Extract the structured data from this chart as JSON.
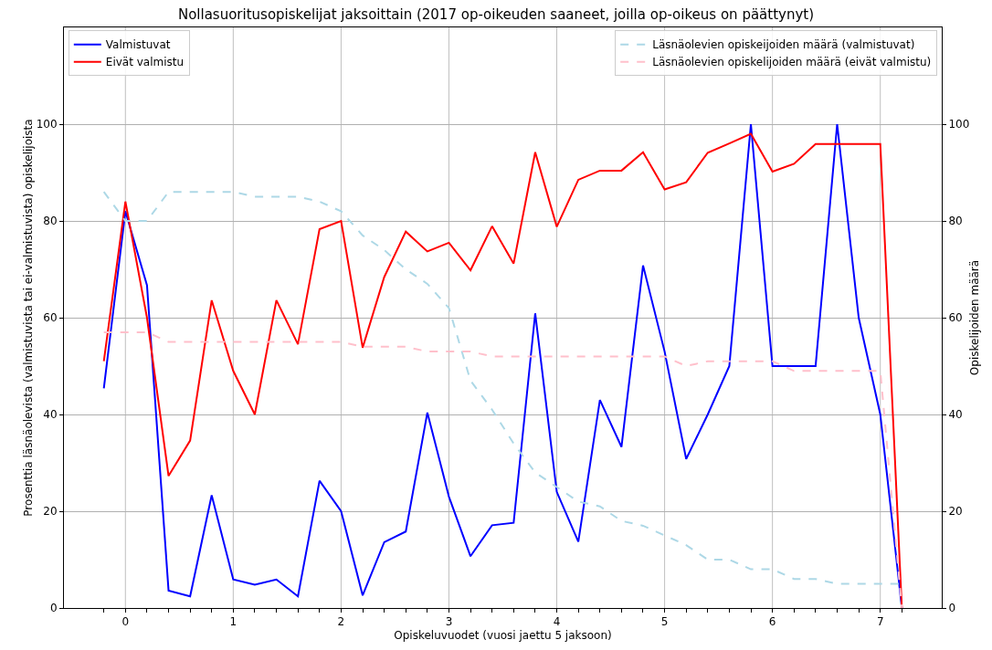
{
  "chart_data": {
    "type": "line",
    "title": "Nollasuoritusopiskelijat jaksoittain (2017 op-oikeuden saaneet, joilla op-oikeus on päättynyt)",
    "xlabel": "Opiskeluvuodet (vuosi jaettu 5 jaksoon)",
    "ylabel": "Prosenttia läsnäolevista (valmistuvista tai ei-valmistuvista) opiskelijoista",
    "y2label": "Opiskelijoiden määrä",
    "x": [
      -0.2,
      0,
      0.2,
      0.4,
      0.6,
      0.8,
      1.0,
      1.2,
      1.4,
      1.6,
      1.8,
      2.0,
      2.2,
      2.4,
      2.6,
      2.8,
      3.0,
      3.2,
      3.4,
      3.6,
      3.8,
      4.0,
      4.2,
      4.4,
      4.6,
      4.8,
      5.0,
      5.2,
      5.4,
      5.6,
      5.8,
      6.0,
      6.2,
      6.4,
      6.6,
      6.8,
      7.0,
      7.2
    ],
    "series": [
      {
        "name": "Valmistuvat",
        "color": "#0000ff",
        "line_style": "solid",
        "values": [
          45.4,
          82,
          66.7,
          3.6,
          2.4,
          23.3,
          5.9,
          4.8,
          5.9,
          2.4,
          26.3,
          20,
          2.6,
          13.6,
          15.8,
          40.4,
          23,
          10.7,
          17.1,
          17.6,
          60.9,
          24,
          13.7,
          43,
          33.3,
          70.8,
          53,
          30.8,
          40,
          50,
          100,
          50,
          50,
          50,
          100,
          60,
          40,
          0
        ]
      },
      {
        "name": "Eivät valmistu",
        "color": "#ff0000",
        "line_style": "solid",
        "values": [
          51,
          84,
          60,
          27.3,
          34.6,
          63.6,
          49,
          40,
          63.6,
          54.5,
          78.3,
          80,
          53.8,
          68.4,
          77.8,
          73.7,
          75.5,
          69.8,
          78.9,
          71.2,
          94.2,
          78.8,
          88.5,
          90.4,
          90.4,
          94.2,
          86.5,
          88,
          94.1,
          96,
          98,
          90.2,
          91.8,
          95.9,
          95.9,
          95.9,
          95.9,
          0
        ]
      },
      {
        "name": "Läsnäolevien opiskeijoiden määrä (valmistuvat)",
        "color": "#add8e6",
        "line_style": "dashed",
        "axis": "y2",
        "values": [
          86,
          80,
          80,
          86,
          86,
          86,
          86,
          85,
          85,
          85,
          84,
          82,
          77,
          74,
          70,
          67,
          62,
          47,
          41,
          34,
          28,
          25,
          22,
          21,
          18,
          17,
          15,
          13,
          10,
          10,
          8,
          8,
          6,
          6,
          5,
          5,
          5,
          5
        ]
      },
      {
        "name": "Läsnäolevien opiskelijoiden määrä (eivät valmistu)",
        "color": "#ffc0cb",
        "line_style": "dashed",
        "axis": "y2",
        "values": [
          57,
          57,
          57,
          55,
          55,
          55,
          55,
          55,
          55,
          55,
          55,
          55,
          54,
          54,
          54,
          53,
          53,
          53,
          52,
          52,
          52,
          52,
          52,
          52,
          52,
          52,
          52,
          50,
          51,
          51,
          51,
          51,
          49,
          49,
          49,
          49,
          49,
          0
        ]
      }
    ],
    "xlim": [
      -0.57,
      7.57
    ],
    "xticks": [
      {
        "value": -0.2,
        "label": null
      },
      0,
      {
        "value": 0.2,
        "label": null
      },
      {
        "value": 0.4,
        "label": null
      },
      {
        "value": 0.6,
        "label": null
      },
      {
        "value": 0.8,
        "label": null
      },
      1,
      {
        "value": 1.2,
        "label": null
      },
      {
        "value": 1.4,
        "label": null
      },
      {
        "value": 1.6,
        "label": null
      },
      {
        "value": 1.8,
        "label": null
      },
      2,
      {
        "value": 2.2,
        "label": null
      },
      {
        "value": 2.4,
        "label": null
      },
      {
        "value": 2.6,
        "label": null
      },
      {
        "value": 2.8,
        "label": null
      },
      3,
      {
        "value": 3.2,
        "label": null
      },
      {
        "value": 3.4,
        "label": null
      },
      {
        "value": 3.6,
        "label": null
      },
      {
        "value": 3.8,
        "label": null
      },
      4,
      {
        "value": 4.2,
        "label": null
      },
      {
        "value": 4.4,
        "label": null
      },
      {
        "value": 4.6,
        "label": null
      },
      {
        "value": 4.8,
        "label": null
      },
      5,
      {
        "value": 5.2,
        "label": null
      },
      {
        "value": 5.4,
        "label": null
      },
      {
        "value": 5.6,
        "label": null
      },
      {
        "value": 5.8,
        "label": null
      },
      6,
      {
        "value": 6.2,
        "label": null
      },
      {
        "value": 6.4,
        "label": null
      },
      {
        "value": 6.6,
        "label": null
      },
      {
        "value": 6.8,
        "label": null
      },
      7,
      {
        "value": 7.2,
        "label": null
      }
    ],
    "ylim": [
      0,
      120
    ],
    "yticks": [
      0,
      20,
      40,
      60,
      80,
      100
    ],
    "y2lim": [
      0,
      120
    ],
    "y2ticks": [
      0,
      20,
      40,
      60,
      80,
      100
    ],
    "grid": true,
    "legend": "top left",
    "marker": "none"
  }
}
